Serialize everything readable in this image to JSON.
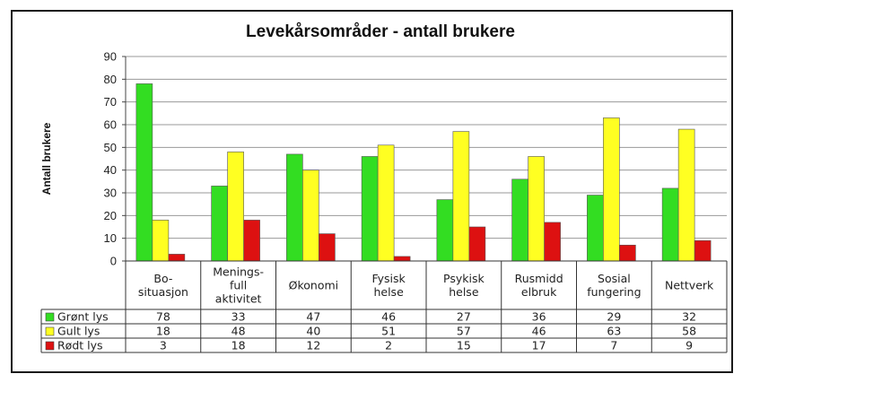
{
  "chart_data": {
    "type": "bar",
    "title": "Levekårsområder - antall brukere",
    "ylabel": "Antall brukere",
    "xlabel": "",
    "ylim": [
      0,
      90
    ],
    "yticks": [
      0,
      10,
      20,
      30,
      40,
      50,
      60,
      70,
      80,
      90
    ],
    "grid": true,
    "legend": "data-table",
    "categories": [
      [
        "Bo-",
        "situasjon"
      ],
      [
        "Menings-",
        "full",
        "aktivitet"
      ],
      [
        "Økonomi"
      ],
      [
        "Fysisk",
        "helse"
      ],
      [
        "Psykisk",
        "helse"
      ],
      [
        "Rusmidd",
        "elbruk"
      ],
      [
        "Sosial",
        "fungering"
      ],
      [
        "Nettverk"
      ]
    ],
    "series": [
      {
        "name": "Grønt lys",
        "color": "#33dd22",
        "values": [
          78,
          33,
          47,
          46,
          27,
          36,
          29,
          32
        ]
      },
      {
        "name": "Gult lys",
        "color": "#ffff22",
        "values": [
          18,
          48,
          40,
          51,
          57,
          46,
          63,
          58
        ]
      },
      {
        "name": "Rødt lys",
        "color": "#dd1111",
        "values": [
          3,
          18,
          12,
          2,
          15,
          17,
          7,
          9
        ]
      }
    ]
  }
}
